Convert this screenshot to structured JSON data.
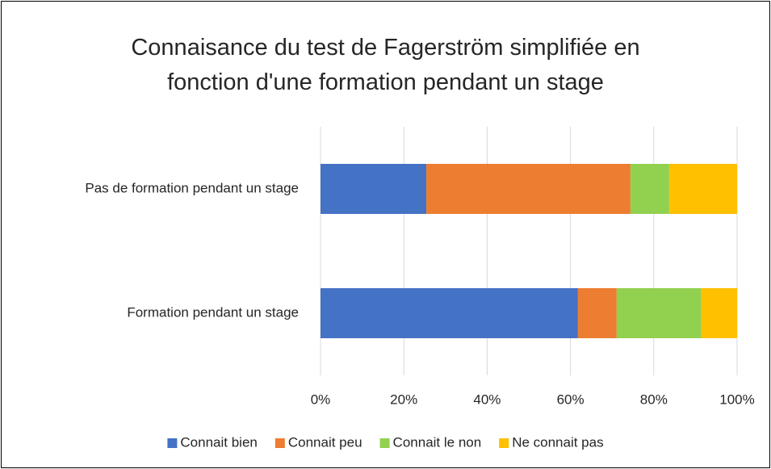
{
  "chart_data": {
    "type": "stacked-bar-horizontal",
    "title": "Connaisance du test de Fagerström simplifiée en fonction d'une formation pendant un stage",
    "categories": [
      "Pas de formation pendant un stage",
      "Formation pendant un stage"
    ],
    "series": [
      {
        "name": "Connait bien",
        "color": "#4472c4",
        "values": [
          25.4,
          61.8
        ]
      },
      {
        "name": "Connait peu",
        "color": "#ed7d31",
        "values": [
          49.0,
          9.3
        ]
      },
      {
        "name": "Connait le non",
        "color": "#92d050",
        "values": [
          9.3,
          20.3
        ]
      },
      {
        "name": "Ne connait pas",
        "color": "#ffc000",
        "values": [
          16.3,
          8.6
        ]
      }
    ],
    "xlim": [
      0,
      100
    ],
    "xticks": [
      {
        "value": 0,
        "label": "0%"
      },
      {
        "value": 20,
        "label": "20%"
      },
      {
        "value": 40,
        "label": "40%"
      },
      {
        "value": 60,
        "label": "60%"
      },
      {
        "value": 80,
        "label": "80%"
      },
      {
        "value": 100,
        "label": "100%"
      }
    ],
    "grid": true,
    "legend": "bottom"
  }
}
